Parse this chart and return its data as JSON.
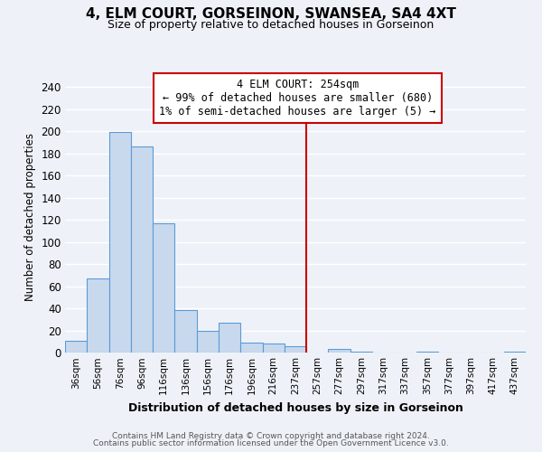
{
  "title": "4, ELM COURT, GORSEINON, SWANSEA, SA4 4XT",
  "subtitle": "Size of property relative to detached houses in Gorseinon",
  "xlabel": "Distribution of detached houses by size in Gorseinon",
  "ylabel": "Number of detached properties",
  "footnote1": "Contains HM Land Registry data © Crown copyright and database right 2024.",
  "footnote2": "Contains public sector information licensed under the Open Government Licence v3.0.",
  "bin_labels": [
    "36sqm",
    "56sqm",
    "76sqm",
    "96sqm",
    "116sqm",
    "136sqm",
    "156sqm",
    "176sqm",
    "196sqm",
    "216sqm",
    "237sqm",
    "257sqm",
    "277sqm",
    "297sqm",
    "317sqm",
    "337sqm",
    "357sqm",
    "377sqm",
    "397sqm",
    "417sqm",
    "437sqm"
  ],
  "bar_values": [
    11,
    67,
    199,
    186,
    117,
    38,
    20,
    27,
    9,
    8,
    6,
    0,
    3,
    1,
    0,
    0,
    1,
    0,
    0,
    0,
    1
  ],
  "bar_color": "#c8d9ee",
  "bar_edge_color": "#5b9bd5",
  "vline_x_idx": 11,
  "vline_color": "#cc0000",
  "annotation_title": "4 ELM COURT: 254sqm",
  "annotation_line1": "← 99% of detached houses are smaller (680)",
  "annotation_line2": "1% of semi-detached houses are larger (5) →",
  "annotation_box_color": "#ffffff",
  "annotation_box_edge": "#cc0000",
  "ylim": [
    0,
    245
  ],
  "yticks": [
    0,
    20,
    40,
    60,
    80,
    100,
    120,
    140,
    160,
    180,
    200,
    220,
    240
  ],
  "bg_color": "#eef2f8",
  "grid_color": "#ffffff",
  "title_fontsize": 11,
  "subtitle_fontsize": 9
}
